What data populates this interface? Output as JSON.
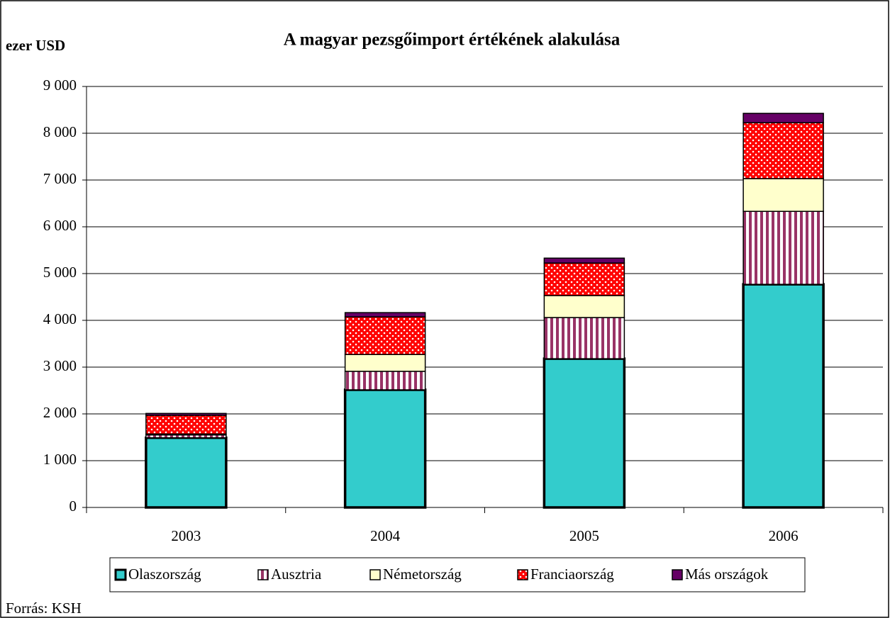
{
  "chart_data": {
    "type": "stacked_bar",
    "title": "A magyar pezsgőimport értékének alakulása",
    "y_axis_label": "ezer USD",
    "source": "Forrás: KSH",
    "categories": [
      "2003",
      "2004",
      "2005",
      "2006"
    ],
    "series": [
      {
        "name": "Olaszország",
        "color": "#33cccc",
        "values": [
          1490,
          2515,
          3180,
          4770
        ]
      },
      {
        "name": "Ausztria",
        "color": "#993366",
        "pattern": "vertical-stripes",
        "values": [
          60,
          395,
          880,
          1560
        ]
      },
      {
        "name": "Németország",
        "color": "#ffffcc",
        "values": [
          20,
          360,
          470,
          700
        ]
      },
      {
        "name": "Franciaország",
        "color": "#ff0000",
        "pattern": "dots",
        "values": [
          400,
          805,
          695,
          1195
        ]
      },
      {
        "name": "Más országok",
        "color": "#660066",
        "values": [
          40,
          90,
          105,
          200
        ]
      }
    ],
    "ylim": [
      0,
      9000
    ],
    "yticks": [
      0,
      {
        "value": 1000,
        "label": "1 000"
      },
      {
        "value": 2000,
        "label": "2 000"
      },
      {
        "value": 3000,
        "label": "3 000"
      },
      {
        "value": 4000,
        "label": "4 000"
      },
      {
        "value": 5000,
        "label": "5 000"
      },
      {
        "value": 6000,
        "label": "6 000"
      },
      {
        "value": 7000,
        "label": "7 000"
      },
      {
        "value": 8000,
        "label": "8 000"
      },
      {
        "value": 9000,
        "label": "9 000"
      }
    ],
    "grid": true,
    "legend": "bottom"
  }
}
